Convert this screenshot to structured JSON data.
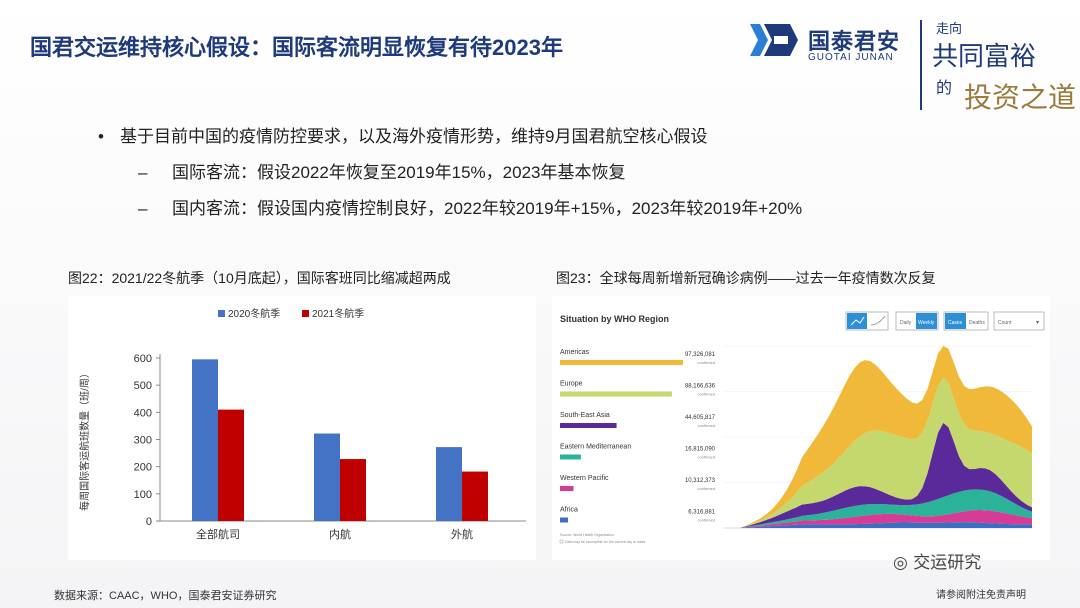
{
  "slide": {
    "title": "国君交运维持核心假设：国际客流明显恢复有待2023年",
    "brand": {
      "name_cn": "国泰君安",
      "name_en": "GUOTAI JUNAN",
      "color": "#1f3a7a"
    },
    "slogan": {
      "line1": "走向",
      "line2": "共同富裕",
      "line3": "的",
      "line4": "投资之道"
    },
    "bullets": [
      {
        "marker": "•",
        "text": "基于目前中国的疫情防控要求，以及海外疫情形势，维持9月国君航空核心假设"
      },
      {
        "marker": "–",
        "text": "国际客流：假设2022年恢复至2019年15%，2023年基本恢复"
      },
      {
        "marker": "–",
        "text": "国内客流：假设国内疫情控制良好，2022年较2019年+15%，2023年较2019年+20%"
      }
    ],
    "figure22_caption": "图22：2021/22冬航季（10月底起），国际客班同比缩减超两成",
    "figure23_caption": "图23：全球每周新增新冠确诊病例——过去一年疫情数次反复",
    "source": "数据来源：CAAC，WHO，国泰君安证券研究",
    "footer": "请参阅附注免责声明",
    "wechat_label": "交运研究"
  },
  "chart_data": [
    {
      "type": "bar",
      "title": "",
      "ylabel": "每周国际客运航班数量（班/周）",
      "categories": [
        "全部航司",
        "内航",
        "外航"
      ],
      "ylim": [
        0,
        600
      ],
      "yticks": [
        0,
        100,
        200,
        300,
        400,
        500,
        600
      ],
      "series": [
        {
          "name": "2020冬航季",
          "color": "#4472c4",
          "values": [
            595,
            322,
            272
          ]
        },
        {
          "name": "2021冬航季",
          "color": "#c00000",
          "values": [
            410,
            228,
            182
          ]
        }
      ],
      "legend": "top",
      "grid": false
    },
    {
      "type": "area",
      "title": "Situation by WHO Region",
      "controls": {
        "period_daily": "Daily",
        "period_weekly": "Weekly",
        "view_cases": "Cases",
        "view_deaths": "Deaths",
        "select": "Count"
      },
      "regions": [
        {
          "name": "Americas",
          "value": "97,326,081",
          "unit": "confirmed",
          "color": "#f0b93a",
          "share": 1.0
        },
        {
          "name": "Europe",
          "value": "88,166,636",
          "unit": "confirmed",
          "color": "#c5d86d",
          "share": 0.91
        },
        {
          "name": "South-East Asia",
          "value": "44,605,817",
          "unit": "confirmed",
          "color": "#5b2a9a",
          "share": 0.46
        },
        {
          "name": "Eastern Mediterranean",
          "value": "16,815,090",
          "unit": "confirmed",
          "color": "#2bb39a",
          "share": 0.17
        },
        {
          "name": "Western Pacific",
          "value": "10,312,373",
          "unit": "confirmed",
          "color": "#d63c96",
          "share": 0.11
        },
        {
          "name": "Africa",
          "value": "6,316,881",
          "unit": "confirmed",
          "color": "#3a6fc4",
          "share": 0.065
        }
      ],
      "notes": [
        "Source: World Health Organization",
        "Data may be incomplete for the current day or week"
      ],
      "grid": true
    }
  ]
}
